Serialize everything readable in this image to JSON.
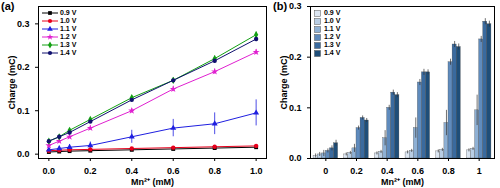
{
  "chart_data": [
    {
      "type": "line",
      "title": "(a)",
      "x_label": "Mn²⁺ (mM)",
      "y_label": "Charge (mC)",
      "x": [
        0,
        0.05,
        0.1,
        0.2,
        0.4,
        0.6,
        0.8,
        1.0
      ],
      "xlim": [
        -0.05,
        1.05
      ],
      "xticks": [
        {
          "value": 0,
          "label": "0.0"
        },
        0.2,
        0.4,
        0.6,
        0.8,
        {
          "value": 1,
          "label": "1.0"
        }
      ],
      "ylim": [
        -0.01,
        0.34
      ],
      "yticks": [
        {
          "value": 0,
          "label": "0.0"
        },
        0.1,
        0.2,
        0.3
      ],
      "legend": "top-left",
      "series": [
        {
          "name": "0.9 V",
          "color": "#000000",
          "marker": "square",
          "values": [
            0.005,
            0.006,
            0.007,
            0.008,
            0.01,
            0.012,
            0.014,
            0.016
          ],
          "errors": [
            0.002,
            0.002,
            0.002,
            0.002,
            0.002,
            0.002,
            0.002,
            0.002
          ]
        },
        {
          "name": "1.0 V",
          "color": "#e8001c",
          "marker": "circle",
          "values": [
            0.008,
            0.009,
            0.01,
            0.011,
            0.013,
            0.015,
            0.017,
            0.019
          ],
          "errors": [
            0.002,
            0.002,
            0.002,
            0.002,
            0.002,
            0.002,
            0.002,
            0.002
          ]
        },
        {
          "name": "1.1 V",
          "color": "#1f1fe0",
          "marker": "triangle",
          "values": [
            0.01,
            0.013,
            0.016,
            0.02,
            0.04,
            0.06,
            0.07,
            0.095
          ],
          "errors": [
            0.004,
            0.005,
            0.006,
            0.008,
            0.015,
            0.02,
            0.025,
            0.03
          ]
        },
        {
          "name": "1.2 V",
          "color": "#e020d0",
          "marker": "star",
          "values": [
            0.02,
            0.03,
            0.04,
            0.06,
            0.1,
            0.15,
            0.19,
            0.235
          ],
          "errors": [
            0.003,
            0.003,
            0.004,
            0.005,
            0.005,
            0.006,
            0.006,
            0.006
          ]
        },
        {
          "name": "1.3 V",
          "color": "#12a012",
          "marker": "diamond",
          "values": [
            0.03,
            0.04,
            0.055,
            0.08,
            0.13,
            0.17,
            0.22,
            0.275
          ],
          "errors": [
            0.003,
            0.003,
            0.004,
            0.004,
            0.005,
            0.006,
            0.006,
            0.006
          ]
        },
        {
          "name": "1.4 V",
          "color": "#10106e",
          "marker": "circle",
          "values": [
            0.03,
            0.04,
            0.05,
            0.075,
            0.125,
            0.17,
            0.215,
            0.265
          ],
          "errors": [
            0.003,
            0.003,
            0.003,
            0.004,
            0.005,
            0.005,
            0.006,
            0.006
          ]
        }
      ]
    },
    {
      "type": "bar",
      "title": "(b)",
      "x_label": "Mn²⁺ (mM)",
      "y_label": "Charge (mC)",
      "categories": [
        0,
        0.2,
        0.4,
        0.6,
        0.8,
        1
      ],
      "ylim": [
        0,
        0.3
      ],
      "yticks": [
        {
          "value": 0,
          "label": "0.0"
        },
        0.1,
        0.2,
        0.3
      ],
      "legend": "top-left",
      "series": [
        {
          "name": "0.9 V",
          "color": "#dce6f2",
          "values": [
            0.005,
            0.008,
            0.01,
            0.012,
            0.014,
            0.016
          ],
          "errors": [
            0.004,
            0.003,
            0.003,
            0.003,
            0.003,
            0.003
          ]
        },
        {
          "name": "1.0 V",
          "color": "#b8cde4",
          "values": [
            0.008,
            0.011,
            0.013,
            0.015,
            0.017,
            0.019
          ],
          "errors": [
            0.004,
            0.003,
            0.003,
            0.003,
            0.003,
            0.003
          ]
        },
        {
          "name": "1.1 V",
          "color": "#8eb0d4",
          "values": [
            0.01,
            0.02,
            0.04,
            0.06,
            0.07,
            0.095
          ],
          "errors": [
            0.006,
            0.008,
            0.015,
            0.02,
            0.025,
            0.03
          ]
        },
        {
          "name": "1.2 V",
          "color": "#5f8bbd",
          "values": [
            0.015,
            0.06,
            0.1,
            0.15,
            0.19,
            0.235
          ],
          "errors": [
            0.004,
            0.004,
            0.005,
            0.006,
            0.006,
            0.006
          ]
        },
        {
          "name": "1.3 V",
          "color": "#3a6a9e",
          "values": [
            0.02,
            0.08,
            0.13,
            0.17,
            0.225,
            0.27
          ],
          "errors": [
            0.005,
            0.004,
            0.005,
            0.006,
            0.006,
            0.006
          ]
        },
        {
          "name": "1.4 V",
          "color": "#1f4e79",
          "values": [
            0.03,
            0.075,
            0.125,
            0.17,
            0.22,
            0.265
          ],
          "errors": [
            0.006,
            0.004,
            0.005,
            0.005,
            0.006,
            0.006
          ]
        }
      ]
    }
  ]
}
